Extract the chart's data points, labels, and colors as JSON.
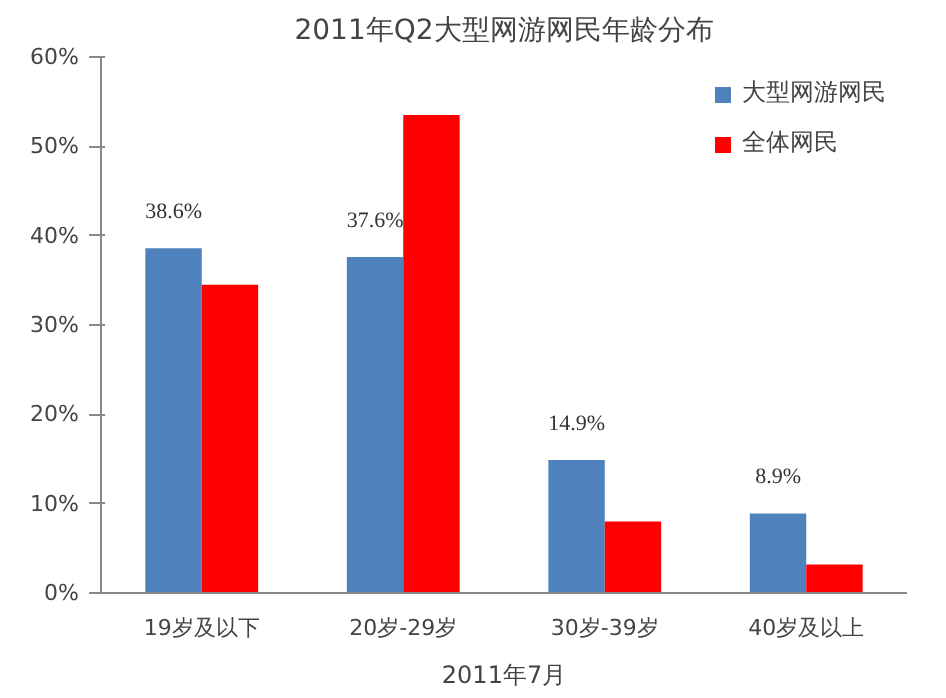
{
  "chart_data": {
    "type": "bar",
    "title": "2011年Q2大型网游网民年龄分布",
    "categories": [
      "19岁及以下",
      "20岁-29岁",
      "30岁-39岁",
      "40岁及以上"
    ],
    "series": [
      {
        "name": "大型网游网民",
        "color": "#4f81bd",
        "values": [
          38.6,
          37.6,
          14.9,
          8.9
        ],
        "value_labels": [
          "38.6%",
          "37.6%",
          "14.9%",
          "8.9%"
        ]
      },
      {
        "name": "全体网民",
        "color": "#ff0000",
        "values": [
          34.5,
          53.5,
          8.0,
          3.2
        ]
      }
    ],
    "ylim": [
      0,
      60
    ],
    "yticks": [
      {
        "value": 0,
        "label": "0%"
      },
      {
        "value": 10,
        "label": "10%"
      },
      {
        "value": 20,
        "label": "20%"
      },
      {
        "value": 30,
        "label": "30%"
      },
      {
        "value": 40,
        "label": "40%"
      },
      {
        "value": 50,
        "label": "50%"
      },
      {
        "value": 60,
        "label": "60%"
      }
    ],
    "grid": false,
    "legend": "top right",
    "annotations": [
      "2011年7月"
    ]
  }
}
